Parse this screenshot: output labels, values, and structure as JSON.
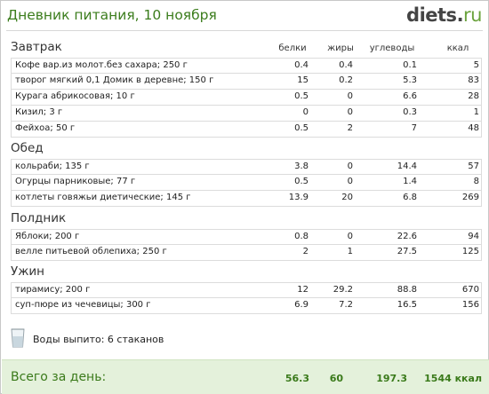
{
  "header": {
    "title": "Дневник питания, 10 ноября",
    "logo_main": "diets",
    "logo_dot": ".",
    "logo_tld": "ru"
  },
  "columns": {
    "protein": "белки",
    "fat": "жиры",
    "carbs": "углеводы",
    "kcal": "ккал"
  },
  "meals": [
    {
      "name": "Завтрак",
      "items": [
        {
          "name": "Кофе вар.из молот.без сахара; 250 г",
          "protein": "0.4",
          "fat": "0.4",
          "carbs": "0.1",
          "kcal": "5"
        },
        {
          "name": "творог мягкий 0,1 Домик в деревне; 150 г",
          "protein": "15",
          "fat": "0.2",
          "carbs": "5.3",
          "kcal": "83"
        },
        {
          "name": "Курага абрикосовая; 10 г",
          "protein": "0.5",
          "fat": "0",
          "carbs": "6.6",
          "kcal": "28"
        },
        {
          "name": "Кизил; 3 г",
          "protein": "0",
          "fat": "0",
          "carbs": "0.3",
          "kcal": "1"
        },
        {
          "name": "Фейхоа; 50 г",
          "protein": "0.5",
          "fat": "2",
          "carbs": "7",
          "kcal": "48"
        }
      ]
    },
    {
      "name": "Обед",
      "items": [
        {
          "name": "кольраби; 135 г",
          "protein": "3.8",
          "fat": "0",
          "carbs": "14.4",
          "kcal": "57"
        },
        {
          "name": "Огурцы парниковые; 77 г",
          "protein": "0.5",
          "fat": "0",
          "carbs": "1.4",
          "kcal": "8"
        },
        {
          "name": "котлеты говяжьи диетические; 145 г",
          "protein": "13.9",
          "fat": "20",
          "carbs": "6.8",
          "kcal": "269"
        }
      ]
    },
    {
      "name": "Полдник",
      "items": [
        {
          "name": "Яблоки; 200 г",
          "protein": "0.8",
          "fat": "0",
          "carbs": "22.6",
          "kcal": "94"
        },
        {
          "name": "велле питьевой облепиха; 250 г",
          "protein": "2",
          "fat": "1",
          "carbs": "27.5",
          "kcal": "125"
        }
      ]
    },
    {
      "name": "Ужин",
      "items": [
        {
          "name": "тирамису; 200 г",
          "protein": "12",
          "fat": "29.2",
          "carbs": "88.8",
          "kcal": "670"
        },
        {
          "name": "суп-пюре из чечевицы; 300 г",
          "protein": "6.9",
          "fat": "7.2",
          "carbs": "16.5",
          "kcal": "156"
        }
      ]
    }
  ],
  "water": {
    "label": "Воды выпито: 6 стаканов",
    "icon": "water-glass-icon"
  },
  "total": {
    "label": "Всего за день:",
    "protein": "56.3",
    "fat": "60",
    "carbs": "197.3",
    "kcal": "1544 ккал"
  },
  "colors": {
    "title": "#3c7d1d",
    "total_bg": "#e4f1db",
    "total_text": "#3a7a1a",
    "logo_tld": "#6aa23c"
  }
}
